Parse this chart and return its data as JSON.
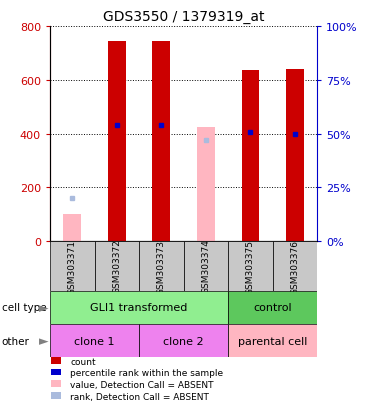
{
  "title": "GDS3550 / 1379319_at",
  "samples": [
    "GSM303371",
    "GSM303372",
    "GSM303373",
    "GSM303374",
    "GSM303375",
    "GSM303376"
  ],
  "count_values": [
    null,
    745,
    745,
    null,
    635,
    640
  ],
  "count_absent": [
    100,
    null,
    null,
    425,
    null,
    null
  ],
  "percentile_values": [
    null,
    430,
    430,
    null,
    405,
    400
  ],
  "percentile_absent": [
    160,
    null,
    null,
    375,
    null,
    null
  ],
  "left_ylim": [
    0,
    800
  ],
  "right_ylim": [
    0,
    100
  ],
  "left_ticks": [
    0,
    200,
    400,
    600,
    800
  ],
  "right_ticks": [
    0,
    25,
    50,
    75,
    100
  ],
  "cell_type_groups": [
    {
      "label": "GLI1 transformed",
      "start": 0,
      "end": 4,
      "color": "#90EE90"
    },
    {
      "label": "control",
      "start": 4,
      "end": 6,
      "color": "#5DC85D"
    }
  ],
  "other_groups": [
    {
      "label": "clone 1",
      "start": 0,
      "end": 2,
      "color": "#EE82EE"
    },
    {
      "label": "clone 2",
      "start": 2,
      "end": 4,
      "color": "#EE82EE"
    },
    {
      "label": "parental cell",
      "start": 4,
      "end": 6,
      "color": "#FFB6C1"
    }
  ],
  "bar_width": 0.4,
  "count_color": "#CC0000",
  "count_absent_color": "#FFB6C1",
  "percentile_color": "#0000CC",
  "percentile_absent_color": "#AABBDD",
  "bg_color": "#FFFFFF",
  "ax_label_color_left": "#CC0000",
  "ax_label_color_right": "#0000CC",
  "sample_box_color": "#C8C8C8",
  "legend_items": [
    {
      "color": "#CC0000",
      "label": "count"
    },
    {
      "color": "#0000CC",
      "label": "percentile rank within the sample"
    },
    {
      "color": "#FFB6C1",
      "label": "value, Detection Call = ABSENT"
    },
    {
      "color": "#AABBDD",
      "label": "rank, Detection Call = ABSENT"
    }
  ]
}
